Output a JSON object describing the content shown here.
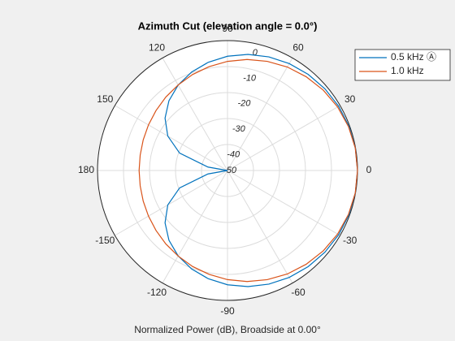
{
  "chart_data": {
    "type": "polar",
    "title": "Azimuth Cut (elevation angle = 0.0°)",
    "xlabel": "Normalized Power (dB), Broadside at 0.00°",
    "theta": [
      -180,
      -170,
      -160,
      -150,
      -140,
      -130,
      -120,
      -110,
      -100,
      -90,
      -80,
      -70,
      -60,
      -50,
      -40,
      -30,
      -20,
      -10,
      0,
      10,
      20,
      30,
      40,
      50,
      60,
      70,
      80,
      90,
      100,
      110,
      120,
      130,
      140,
      150,
      160,
      170,
      180
    ],
    "series": [
      {
        "name": "0.5 kHz Ⓐ",
        "color": "#0072bd",
        "values": [
          -50,
          -42.38,
          -30.4,
          -23.48,
          -18.64,
          -14.96,
          -12.04,
          -9.66,
          -7.68,
          -6.02,
          -4.63,
          -3.47,
          -2.5,
          -1.71,
          -1.08,
          -0.6,
          -0.27,
          -0.07,
          0,
          -0.07,
          -0.27,
          -0.6,
          -1.08,
          -1.71,
          -2.5,
          -3.47,
          -4.63,
          -6.02,
          -7.68,
          -9.66,
          -12.04,
          -14.96,
          -18.64,
          -23.48,
          -30.4,
          -42.38,
          -50
        ]
      },
      {
        "name": "1.0 kHz",
        "color": "#d95319",
        "values": [
          -16,
          -15.9,
          -15.5,
          -14.9,
          -14.1,
          -13.1,
          -12,
          -10.7,
          -9.4,
          -8,
          -6.6,
          -5.3,
          -4,
          -2.9,
          -1.9,
          -1.1,
          -0.5,
          -0.1,
          0,
          -0.1,
          -0.5,
          -1.1,
          -1.9,
          -2.9,
          -4,
          -5.3,
          -6.6,
          -8,
          -9.4,
          -10.7,
          -12,
          -13.1,
          -14.1,
          -14.9,
          -15.5,
          -15.9,
          -16
        ]
      }
    ],
    "rlim": [
      -50,
      0
    ],
    "rticks": [
      0,
      -10,
      -20,
      -30,
      -40,
      -50
    ],
    "thetaticks": [
      0,
      30,
      60,
      90,
      120,
      150,
      180,
      -150,
      -120,
      -90,
      -60,
      -30
    ],
    "grid": true,
    "legend": "upper right"
  }
}
